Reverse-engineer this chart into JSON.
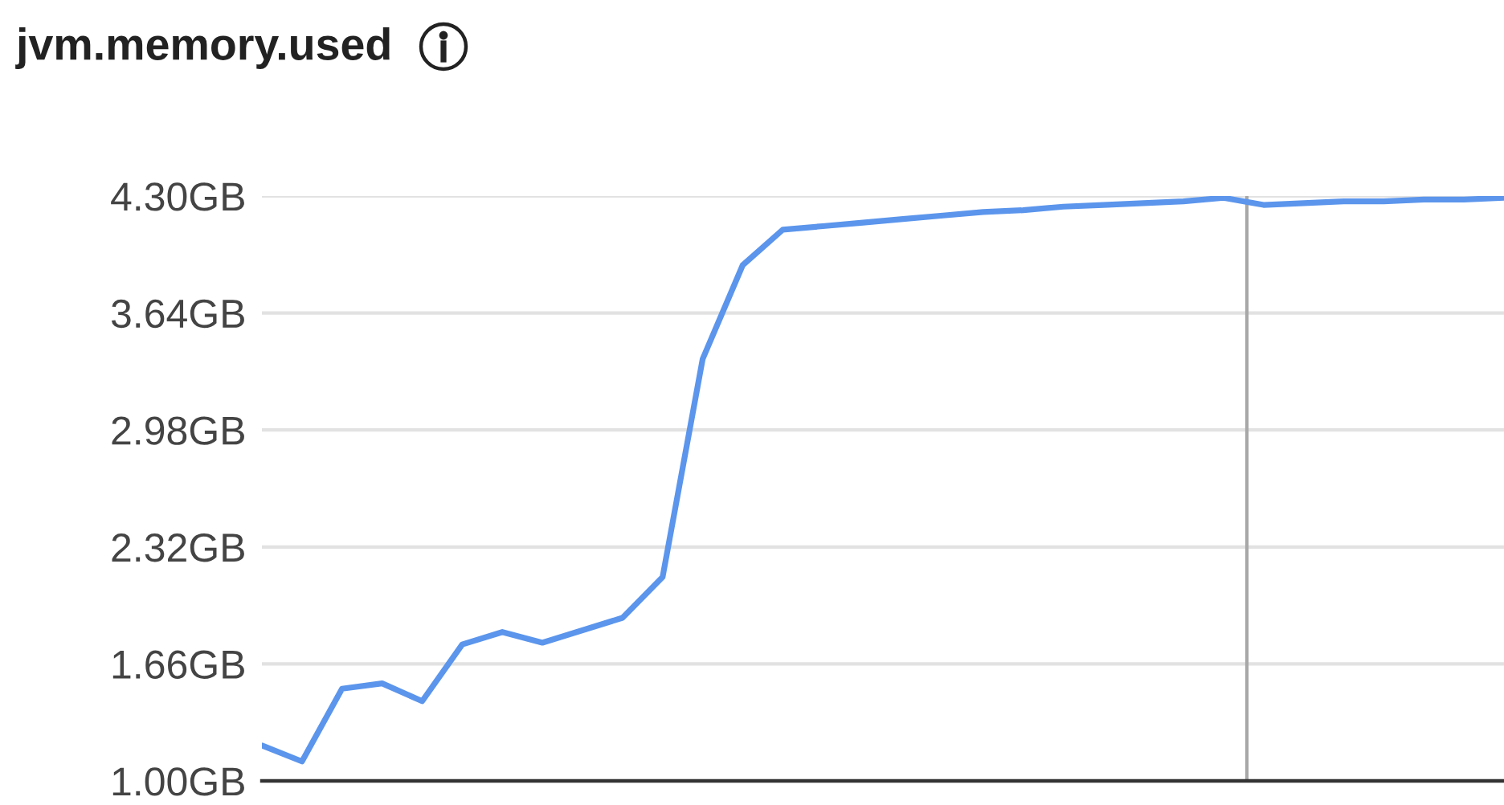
{
  "chart_data": {
    "type": "line",
    "title": "jvm.memory.used",
    "categories": [
      null,
      null,
      null,
      null,
      null,
      null,
      null,
      null,
      null,
      null,
      null,
      null,
      null,
      null,
      null,
      null,
      null,
      null,
      null,
      null,
      null,
      null,
      null,
      null,
      null,
      null,
      null,
      null,
      null,
      null,
      null,
      null
    ],
    "series": [
      {
        "color": "#5b95ec",
        "values": [
          1.2,
          1.11,
          1.52,
          1.55,
          1.45,
          1.77,
          1.84,
          1.78,
          1.85,
          1.92,
          2.15,
          3.38,
          3.91,
          4.11,
          4.13,
          4.15,
          4.17,
          4.19,
          4.21,
          4.22,
          4.24,
          4.25,
          4.26,
          4.27,
          4.29,
          4.25,
          4.26,
          4.27,
          4.27,
          4.28,
          4.28,
          4.29
        ]
      }
    ],
    "ylim": [
      1.0,
      4.3
    ],
    "yticks": [
      {
        "value": 1.0,
        "label": "1.00GB"
      },
      {
        "value": 1.66,
        "label": "1.66GB"
      },
      {
        "value": 2.32,
        "label": "2.32GB"
      },
      {
        "value": 2.98,
        "label": "2.98GB"
      },
      {
        "value": 3.64,
        "label": "3.64GB"
      },
      {
        "value": 4.3,
        "label": "4.30GB"
      }
    ],
    "grid": "y",
    "marker": "none",
    "line_style": "solid"
  }
}
